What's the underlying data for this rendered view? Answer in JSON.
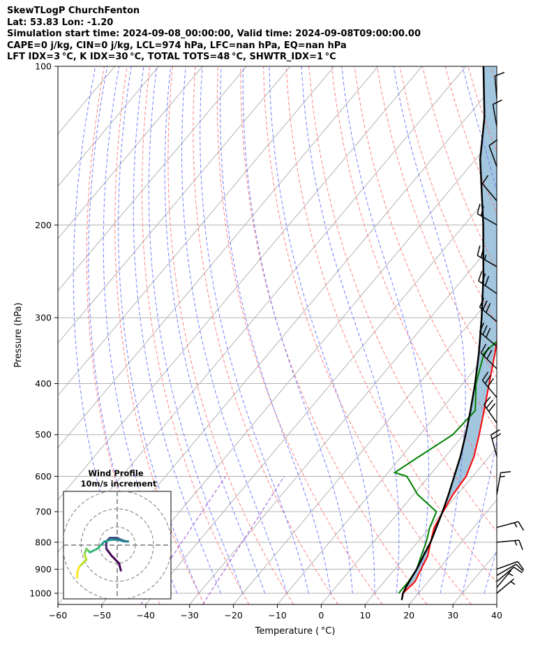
{
  "header": {
    "line1": "SkewTLogP ChurchFenton",
    "line2": "Lat: 53.83   Lon: -1.20",
    "line3": "Simulation start time: 2024-09-08_00:00:00, Valid time: 2024-09-08T09:00:00.00",
    "line4": "CAPE=0 j/kg, CIN=0 j/kg, LCL=974 hPa, LFC=nan hPa, EQ=nan hPa",
    "line5": "LFT IDX=3 °C, K IDX=30 °C, TOTAL TOTS=48 °C, SHWTR_IDX=1 °C"
  },
  "colors": {
    "temperature": "#ff0000",
    "dewpoint": "#008000",
    "parcel": "#000000",
    "cin_fill": "#a3c6df",
    "dry_adiabat": "#ff6b6b",
    "moist_adiabat": "#5c6bff",
    "mixing_ratio": "#9b4fd0",
    "isotherm": "#b3b3b3"
  },
  "chart_data": {
    "type": "line",
    "title": "SkewTLogP ChurchFenton",
    "xlabel": "Temperature ( °C)",
    "ylabel": "Pressure (hPa)",
    "xlim": [
      -60,
      40
    ],
    "ylim": [
      1050,
      100
    ],
    "yscale": "log",
    "grid": true,
    "x_ticks": [
      "−60",
      "−50",
      "−40",
      "−30",
      "−20",
      "−10",
      "0",
      "10",
      "20",
      "30",
      "40"
    ],
    "y_ticks": [
      "100",
      "200",
      "300",
      "400",
      "500",
      "600",
      "700",
      "800",
      "900",
      "1000"
    ],
    "series": [
      {
        "name": "temperature",
        "points": [
          [
            1000,
            16.5
          ],
          [
            950,
            17
          ],
          [
            900,
            16
          ],
          [
            850,
            15
          ],
          [
            800,
            13
          ],
          [
            750,
            11
          ],
          [
            700,
            10
          ],
          [
            650,
            9
          ],
          [
            600,
            8.5
          ],
          [
            550,
            6.5
          ],
          [
            500,
            3.5
          ],
          [
            450,
            0
          ],
          [
            400,
            -4
          ],
          [
            350,
            -8.5
          ],
          [
            300,
            -14
          ],
          [
            275,
            -17.5
          ],
          [
            250,
            -22
          ],
          [
            225,
            -23.5
          ],
          [
            200,
            -26
          ],
          [
            185,
            -27
          ],
          [
            170,
            -30
          ],
          [
            155,
            -35
          ],
          [
            140,
            -39
          ],
          [
            125,
            -43
          ],
          [
            110,
            -46
          ],
          [
            100,
            -48
          ]
        ]
      },
      {
        "name": "dewpoint",
        "points": [
          [
            1000,
            15.5
          ],
          [
            950,
            15.5
          ],
          [
            900,
            15
          ],
          [
            850,
            13.5
          ],
          [
            800,
            12
          ],
          [
            750,
            10
          ],
          [
            700,
            8.5
          ],
          [
            650,
            1
          ],
          [
            600,
            -5
          ],
          [
            590,
            -8.5
          ],
          [
            550,
            -6
          ],
          [
            500,
            -2.5
          ],
          [
            450,
            -2
          ],
          [
            400,
            -7
          ],
          [
            350,
            -11
          ],
          [
            325,
            -10
          ],
          [
            300,
            -11
          ],
          [
            275,
            -13
          ],
          [
            250,
            -16
          ],
          [
            225,
            -20
          ],
          [
            200,
            -27
          ],
          [
            185,
            -31
          ],
          [
            170,
            -30
          ],
          [
            150,
            -30
          ],
          [
            125,
            -33
          ],
          [
            110,
            -38
          ],
          [
            100,
            -41
          ]
        ]
      },
      {
        "name": "parcel",
        "points": [
          [
            1030,
            17.5
          ],
          [
            1000,
            16.5
          ],
          [
            974,
            16
          ],
          [
            900,
            15
          ],
          [
            850,
            14
          ],
          [
            800,
            13
          ],
          [
            750,
            11.5
          ],
          [
            700,
            9.9
          ],
          [
            650,
            8
          ],
          [
            600,
            5.8
          ],
          [
            550,
            3.4
          ],
          [
            500,
            0.4
          ],
          [
            450,
            -3.1
          ],
          [
            400,
            -7.2
          ],
          [
            350,
            -12.2
          ],
          [
            300,
            -18.3
          ],
          [
            250,
            -25.9
          ],
          [
            200,
            -35.7
          ],
          [
            150,
            -49
          ],
          [
            125,
            -56
          ],
          [
            100,
            -66
          ]
        ]
      }
    ],
    "winds": [
      {
        "p": 1000,
        "spd": 5,
        "dir": 50
      },
      {
        "p": 975,
        "spd": 5,
        "dir": 40
      },
      {
        "p": 950,
        "spd": 10,
        "dir": 50
      },
      {
        "p": 925,
        "spd": 10,
        "dir": 60
      },
      {
        "p": 900,
        "spd": 10,
        "dir": 70
      },
      {
        "p": 800,
        "spd": 15,
        "dir": 85
      },
      {
        "p": 750,
        "spd": 15,
        "dir": 75
      },
      {
        "p": 650,
        "spd": 15,
        "dir": 10
      },
      {
        "p": 550,
        "spd": 20,
        "dir": 345
      },
      {
        "p": 475,
        "spd": 30,
        "dir": 325
      },
      {
        "p": 425,
        "spd": 30,
        "dir": 320
      },
      {
        "p": 375,
        "spd": 30,
        "dir": 315
      },
      {
        "p": 340,
        "spd": 30,
        "dir": 310
      },
      {
        "p": 305,
        "spd": 30,
        "dir": 310
      },
      {
        "p": 270,
        "spd": 30,
        "dir": 305
      },
      {
        "p": 240,
        "spd": 25,
        "dir": 300
      },
      {
        "p": 200,
        "spd": 20,
        "dir": 300
      },
      {
        "p": 180,
        "spd": 10,
        "dir": 320
      },
      {
        "p": 155,
        "spd": 10,
        "dir": 340
      },
      {
        "p": 130,
        "spd": 10,
        "dir": 350
      },
      {
        "p": 115,
        "spd": 10,
        "dir": 355
      }
    ],
    "inset": {
      "title": "Wind Profile",
      "subtitle": "10m/s increment",
      "rings": [
        10,
        20,
        30
      ],
      "hodograph": [
        [
          2,
          -14
        ],
        [
          1,
          -10
        ],
        [
          -3,
          -6
        ],
        [
          -6,
          -2
        ],
        [
          -6,
          2
        ],
        [
          -4,
          4
        ],
        [
          -2,
          4
        ],
        [
          0,
          4
        ],
        [
          2,
          3
        ],
        [
          5,
          2
        ],
        [
          6,
          2
        ],
        [
          4,
          2
        ],
        [
          0,
          3
        ],
        [
          -3,
          3
        ],
        [
          -7,
          2
        ],
        [
          -9,
          0
        ],
        [
          -11,
          -2
        ],
        [
          -15,
          -4
        ],
        [
          -16,
          -3
        ],
        [
          -17,
          -2
        ],
        [
          -18,
          -5
        ],
        [
          -17,
          -8
        ],
        [
          -19,
          -10
        ],
        [
          -21,
          -12
        ],
        [
          -22,
          -15
        ],
        [
          -22,
          -18
        ]
      ]
    }
  }
}
